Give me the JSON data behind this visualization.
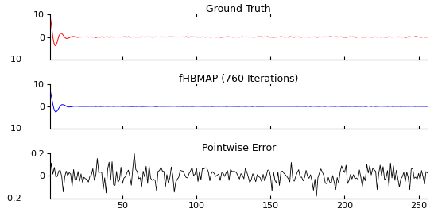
{
  "title1": "Ground Truth",
  "title2": "fHBMAP (760 Iterations)",
  "title3": "Pointwise Error",
  "xlim": [
    1,
    256
  ],
  "ylim1": [
    -10,
    10
  ],
  "ylim2": [
    -10,
    10
  ],
  "ylim3": [
    -0.2,
    0.2
  ],
  "xticks": [
    50,
    100,
    150,
    200,
    250
  ],
  "color1": "red",
  "color2": "blue",
  "color3": "black",
  "n_points": 256,
  "bg_color": "#f0f0f0",
  "linewidth": 0.7,
  "linewidth3": 0.6
}
